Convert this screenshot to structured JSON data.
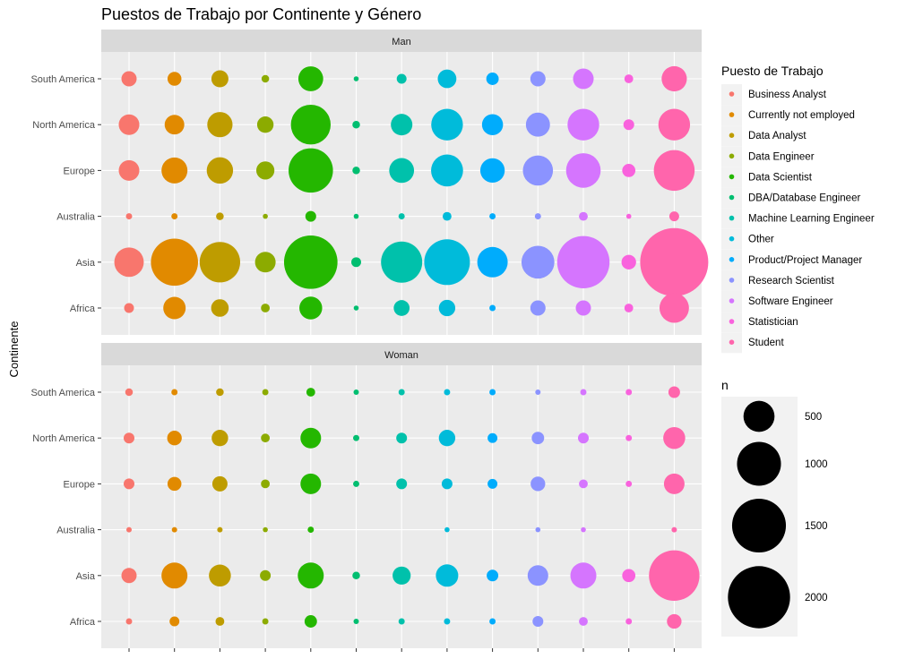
{
  "chart_data": {
    "type": "scatter",
    "title": "Puestos de Trabajo por Continente y Género",
    "xlabel": "",
    "ylabel": "Continente",
    "facets": [
      "Man",
      "Woman"
    ],
    "continents": [
      "Africa",
      "Asia",
      "Australia",
      "Europe",
      "North America",
      "South America"
    ],
    "roles": [
      "Business Analyst",
      "Currently not employed",
      "Data Analyst",
      "Data Engineer",
      "Data Scientist",
      "DBA/Database Engineer",
      "Machine Learning Engineer",
      "Other",
      "Product/Project Manager",
      "Research Scientist",
      "Software Engineer",
      "Statistician",
      "Student"
    ],
    "colors": [
      "#F8766D",
      "#E18A00",
      "#BE9C00",
      "#8CAB00",
      "#24B700",
      "#00BE70",
      "#00C1AB",
      "#00BBDA",
      "#00ACFC",
      "#8B93FF",
      "#D575FE",
      "#F962DD",
      "#FF65AC"
    ],
    "size_legend": {
      "title": "n",
      "breaks": [
        500,
        1000,
        1500,
        2000
      ],
      "labels": [
        "500",
        "1000",
        "1500",
        "2000"
      ]
    },
    "color_legend_title": "Puesto de Trabajo",
    "series": [
      {
        "facet": "Man",
        "continent": "South America",
        "values": [
          120,
          100,
          150,
          30,
          320,
          10,
          50,
          180,
          80,
          120,
          220,
          40,
          330
        ]
      },
      {
        "facet": "Man",
        "continent": "North America",
        "values": [
          220,
          200,
          330,
          140,
          820,
          30,
          240,
          520,
          230,
          300,
          520,
          60,
          520
        ]
      },
      {
        "facet": "Man",
        "continent": "Europe",
        "values": [
          220,
          350,
          360,
          170,
          1020,
          30,
          320,
          530,
          310,
          470,
          620,
          90,
          860
        ]
      },
      {
        "facet": "Man",
        "continent": "Australia",
        "values": [
          20,
          20,
          30,
          10,
          60,
          10,
          20,
          40,
          20,
          20,
          40,
          10,
          50
        ]
      },
      {
        "facet": "Man",
        "continent": "Asia",
        "values": [
          450,
          1150,
          850,
          220,
          1480,
          50,
          880,
          1080,
          480,
          560,
          1420,
          110,
          2400
        ]
      },
      {
        "facet": "Man",
        "continent": "Africa",
        "values": [
          50,
          260,
          160,
          40,
          270,
          10,
          130,
          140,
          20,
          120,
          120,
          40,
          450
        ]
      },
      {
        "facet": "Woman",
        "continent": "South America",
        "values": [
          30,
          20,
          30,
          20,
          40,
          15,
          20,
          20,
          20,
          15,
          20,
          20,
          70
        ]
      },
      {
        "facet": "Woman",
        "continent": "North America",
        "values": [
          60,
          110,
          140,
          40,
          220,
          20,
          60,
          140,
          50,
          80,
          60,
          20,
          250
        ]
      },
      {
        "facet": "Woman",
        "continent": "Europe",
        "values": [
          60,
          100,
          120,
          40,
          220,
          20,
          60,
          60,
          50,
          110,
          40,
          20,
          220
        ]
      },
      {
        "facet": "Woman",
        "continent": "Australia",
        "values": [
          15,
          15,
          15,
          10,
          20,
          0,
          0,
          10,
          0,
          10,
          10,
          0,
          15
        ]
      },
      {
        "facet": "Woman",
        "continent": "Asia",
        "values": [
          120,
          350,
          250,
          60,
          350,
          30,
          170,
          260,
          70,
          220,
          350,
          90,
          1320
        ]
      },
      {
        "facet": "Woman",
        "continent": "Africa",
        "values": [
          20,
          50,
          40,
          20,
          80,
          15,
          20,
          20,
          20,
          60,
          40,
          20,
          110
        ]
      }
    ]
  }
}
